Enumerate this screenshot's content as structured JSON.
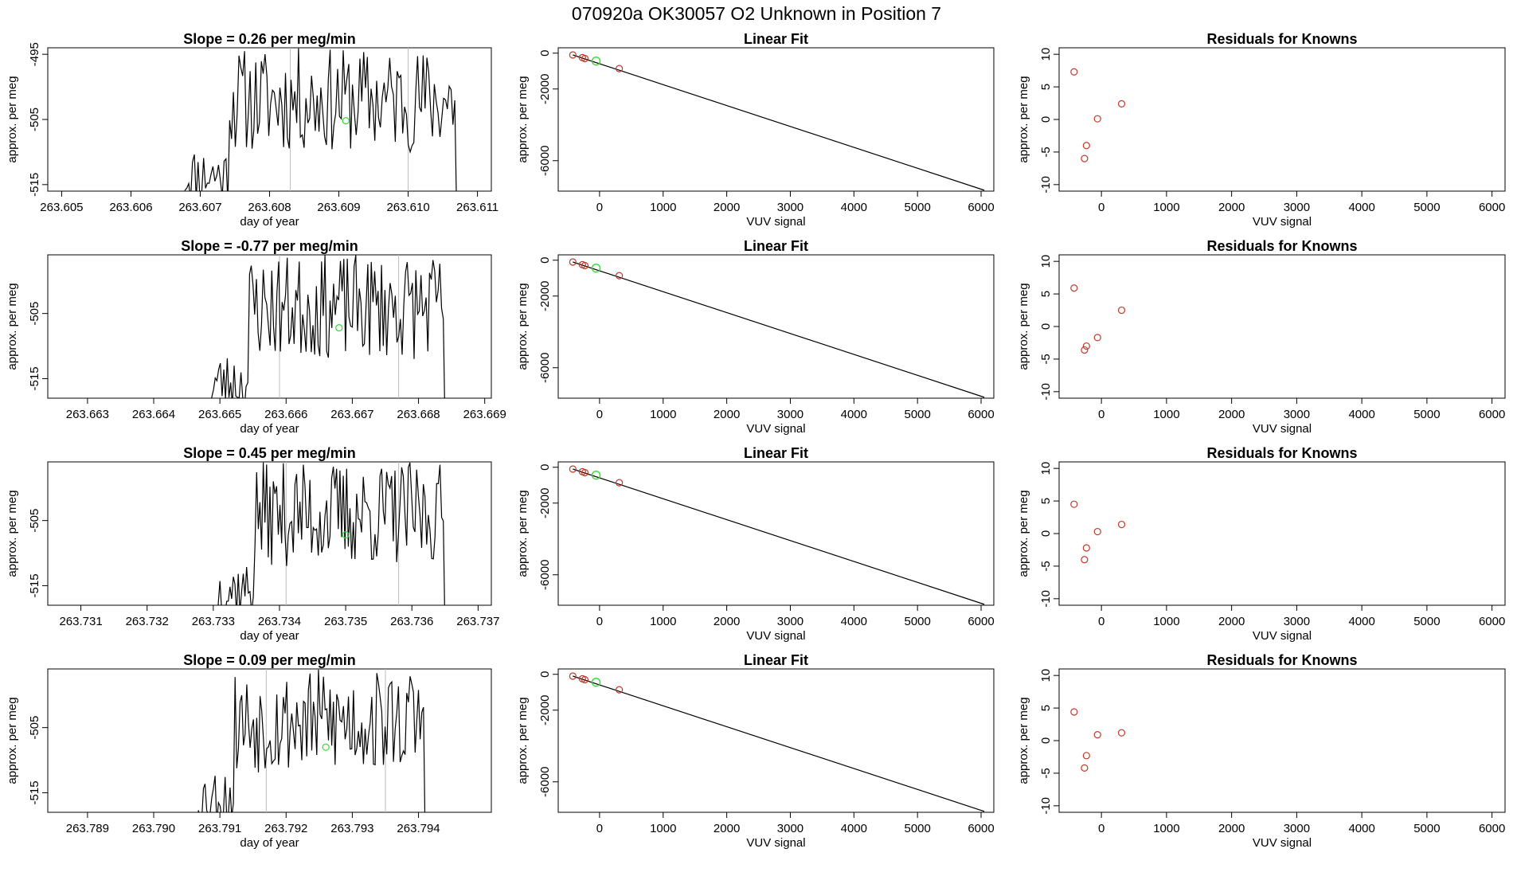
{
  "page_title": "070920a      OK30057    O2 Unknown in Position  7",
  "colors": {
    "known_points": "#c0392b",
    "unknown_point": "#33dd33",
    "line": "#000000",
    "marker_line": "#bbbbbb"
  },
  "chart_data": [
    {
      "type": "line",
      "title": "Slope =  0.26  per meg/min",
      "xlabel": "day of year",
      "ylabel": "approx. per meg",
      "xlim": [
        263.6048,
        263.6112
      ],
      "ylim": [
        -516,
        -494
      ],
      "xticks": [
        "263.605",
        "263.606",
        "263.607",
        "263.608",
        "263.609",
        "263.610",
        "263.611"
      ],
      "yticks": [
        "-495",
        "-505",
        "-515"
      ],
      "series_start": 263.6067,
      "series_end": 263.6107,
      "series_points": 150,
      "seed": 11,
      "markers": [
        263.6083,
        263.61
      ],
      "unknown_point": {
        "x": 263.6091,
        "y": -505.2
      }
    },
    {
      "type": "scatter",
      "title": "Linear Fit",
      "xlabel": "VUV signal",
      "ylabel": "approx. per meg",
      "xlim": [
        -650,
        6200
      ],
      "ylim": [
        -7700,
        300
      ],
      "xticks": [
        "0",
        "1000",
        "2000",
        "3000",
        "4000",
        "5000",
        "6000"
      ],
      "yticks": [
        "0",
        "-2000",
        "-6000"
      ],
      "fit_line": {
        "x": [
          -420,
          6050
        ],
        "y": [
          -100,
          -7650
        ]
      },
      "known_points": {
        "x": [
          -420,
          -270,
          -230,
          310
        ],
        "y": [
          -100,
          -250,
          -300,
          -860
        ]
      },
      "unknown_point": {
        "x": -55,
        "y": -440
      }
    },
    {
      "type": "scatter",
      "title": "Residuals for Knowns",
      "xlabel": "VUV signal",
      "ylabel": "approx. per meg",
      "xlim": [
        -650,
        6200
      ],
      "ylim": [
        -11,
        11
      ],
      "xticks": [
        "0",
        "1000",
        "2000",
        "3000",
        "4000",
        "5000",
        "6000"
      ],
      "yticks": [
        "10",
        "5",
        "0",
        "-5",
        "-10"
      ],
      "known_points": {
        "x": [
          -420,
          -230,
          -260,
          -60,
          310
        ],
        "y": [
          7.3,
          -4.0,
          -6.0,
          0.1,
          2.4
        ]
      }
    },
    {
      "type": "line",
      "title": "Slope =  -0.77  per meg/min",
      "xlabel": "day of year",
      "ylabel": "approx. per meg",
      "xlim": [
        263.6624,
        263.6691
      ],
      "ylim": [
        -518,
        -496
      ],
      "xticks": [
        "263.663",
        "263.664",
        "263.665",
        "263.666",
        "263.667",
        "263.668",
        "263.669"
      ],
      "yticks": [
        "-505",
        "-515"
      ],
      "series_start": 263.6648,
      "series_end": 263.6684,
      "series_points": 140,
      "seed": 23,
      "markers": [
        263.6659,
        263.6677
      ],
      "unknown_point": {
        "x": 263.6668,
        "y": -507.2
      }
    },
    {
      "type": "scatter",
      "title": "Linear Fit",
      "xlabel": "VUV signal",
      "ylabel": "approx. per meg",
      "xlim": [
        -650,
        6200
      ],
      "ylim": [
        -7700,
        300
      ],
      "xticks": [
        "0",
        "1000",
        "2000",
        "3000",
        "4000",
        "5000",
        "6000"
      ],
      "yticks": [
        "0",
        "-2000",
        "-6000"
      ],
      "fit_line": {
        "x": [
          -420,
          6050
        ],
        "y": [
          -100,
          -7650
        ]
      },
      "known_points": {
        "x": [
          -420,
          -270,
          -230,
          310
        ],
        "y": [
          -100,
          -250,
          -300,
          -860
        ]
      },
      "unknown_point": {
        "x": -55,
        "y": -440
      }
    },
    {
      "type": "scatter",
      "title": "Residuals for Knowns",
      "xlabel": "VUV signal",
      "ylabel": "approx. per meg",
      "xlim": [
        -650,
        6200
      ],
      "ylim": [
        -11,
        11
      ],
      "xticks": [
        "0",
        "1000",
        "2000",
        "3000",
        "4000",
        "5000",
        "6000"
      ],
      "yticks": [
        "10",
        "5",
        "0",
        "-5",
        "-10"
      ],
      "known_points": {
        "x": [
          -420,
          -230,
          -260,
          -60,
          310
        ],
        "y": [
          5.9,
          -3.0,
          -3.6,
          -1.7,
          2.5
        ]
      }
    },
    {
      "type": "line",
      "title": "Slope =  0.45  per meg/min",
      "xlabel": "day of year",
      "ylabel": "approx. per meg",
      "xlim": [
        263.7305,
        263.7372
      ],
      "ylim": [
        -518,
        -496
      ],
      "xticks": [
        "263.731",
        "263.732",
        "263.733",
        "263.734",
        "263.735",
        "263.736",
        "263.737"
      ],
      "yticks": [
        "-505",
        "-515"
      ],
      "series_start": 263.733,
      "series_end": 263.7365,
      "series_points": 140,
      "seed": 37,
      "markers": [
        263.7341,
        263.7358
      ],
      "unknown_point": {
        "x": 263.735,
        "y": -507.2
      }
    },
    {
      "type": "scatter",
      "title": "Linear Fit",
      "xlabel": "VUV signal",
      "ylabel": "approx. per meg",
      "xlim": [
        -650,
        6200
      ],
      "ylim": [
        -7700,
        300
      ],
      "xticks": [
        "0",
        "1000",
        "2000",
        "3000",
        "4000",
        "5000",
        "6000"
      ],
      "yticks": [
        "0",
        "-2000",
        "-6000"
      ],
      "fit_line": {
        "x": [
          -420,
          6050
        ],
        "y": [
          -100,
          -7650
        ]
      },
      "known_points": {
        "x": [
          -420,
          -270,
          -230,
          310
        ],
        "y": [
          -100,
          -250,
          -300,
          -860
        ]
      },
      "unknown_point": {
        "x": -55,
        "y": -440
      }
    },
    {
      "type": "scatter",
      "title": "Residuals for Knowns",
      "xlabel": "VUV signal",
      "ylabel": "approx. per meg",
      "xlim": [
        -650,
        6200
      ],
      "ylim": [
        -11,
        11
      ],
      "xticks": [
        "0",
        "1000",
        "2000",
        "3000",
        "4000",
        "5000",
        "6000"
      ],
      "yticks": [
        "10",
        "5",
        "0",
        "-5",
        "-10"
      ],
      "known_points": {
        "x": [
          -420,
          -230,
          -260,
          -60,
          310
        ],
        "y": [
          4.5,
          -2.2,
          -4.0,
          0.3,
          1.4
        ]
      }
    },
    {
      "type": "line",
      "title": "Slope =  0.09  per meg/min",
      "xlabel": "day of year",
      "ylabel": "approx. per meg",
      "xlim": [
        263.7884,
        263.7951
      ],
      "ylim": [
        -518,
        -496
      ],
      "xticks": [
        "263.789",
        "263.790",
        "263.791",
        "263.792",
        "263.793",
        "263.794"
      ],
      "yticks": [
        "-505",
        "-515"
      ],
      "series_start": 263.7906,
      "series_end": 263.7941,
      "series_points": 140,
      "seed": 53,
      "markers": [
        263.7917,
        263.7935
      ],
      "unknown_point": {
        "x": 263.7926,
        "y": -508.0
      }
    },
    {
      "type": "scatter",
      "title": "Linear Fit",
      "xlabel": "VUV signal",
      "ylabel": "approx. per meg",
      "xlim": [
        -650,
        6200
      ],
      "ylim": [
        -7700,
        300
      ],
      "xticks": [
        "0",
        "1000",
        "2000",
        "3000",
        "4000",
        "5000",
        "6000"
      ],
      "yticks": [
        "0",
        "-2000",
        "-6000"
      ],
      "fit_line": {
        "x": [
          -420,
          6050
        ],
        "y": [
          -100,
          -7650
        ]
      },
      "known_points": {
        "x": [
          -420,
          -270,
          -230,
          310
        ],
        "y": [
          -100,
          -250,
          -300,
          -860
        ]
      },
      "unknown_point": {
        "x": -55,
        "y": -440
      }
    },
    {
      "type": "scatter",
      "title": "Residuals for Knowns",
      "xlabel": "VUV signal",
      "ylabel": "approx. per meg",
      "xlim": [
        -650,
        6200
      ],
      "ylim": [
        -11,
        11
      ],
      "xticks": [
        "0",
        "1000",
        "2000",
        "3000",
        "4000",
        "5000",
        "6000"
      ],
      "yticks": [
        "10",
        "5",
        "0",
        "-5",
        "-10"
      ],
      "known_points": {
        "x": [
          -420,
          -230,
          -260,
          -60,
          310
        ],
        "y": [
          4.4,
          -2.3,
          -4.2,
          0.9,
          1.2
        ]
      }
    }
  ]
}
